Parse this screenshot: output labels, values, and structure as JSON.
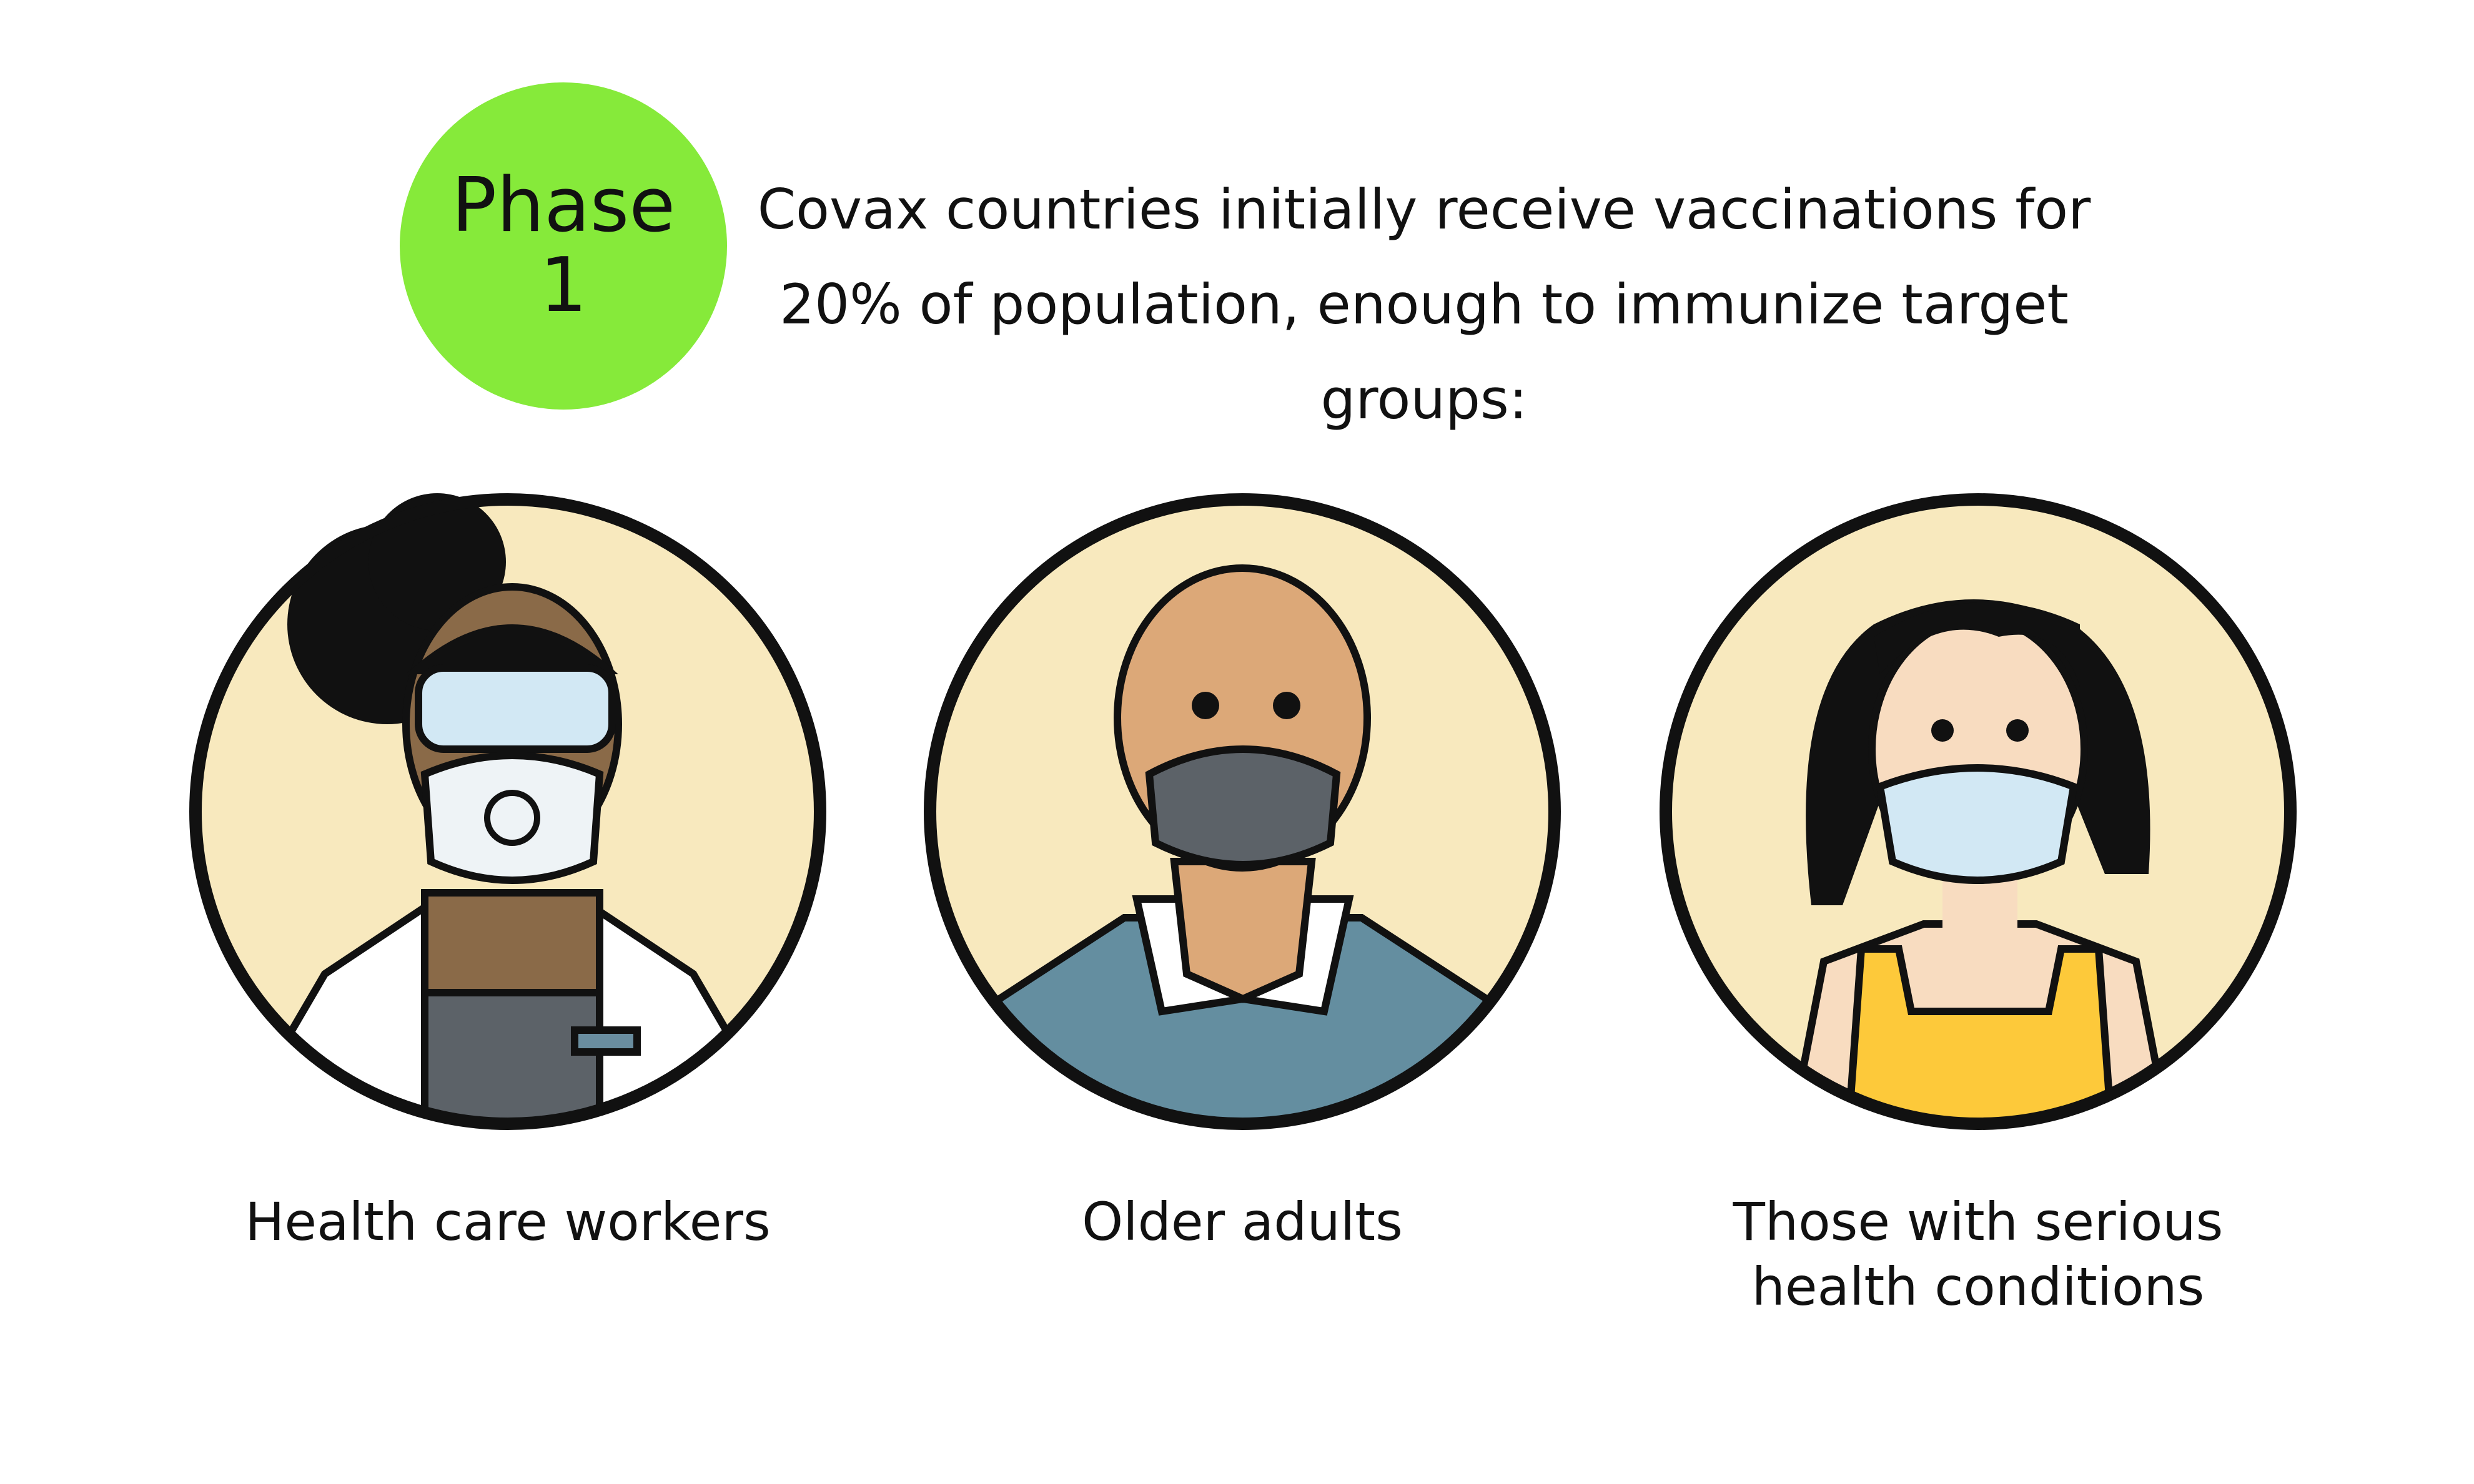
{
  "phase": {
    "word": "Phase",
    "number": "1",
    "color": "#86ea3a"
  },
  "intro": {
    "line1": "Covax countries initially receive vaccinations for",
    "line2": "20% of population, enough to immunize target groups:"
  },
  "groups": [
    {
      "label": "Health care workers",
      "icon": "health-care-worker-portrait"
    },
    {
      "label": "Older adults",
      "icon": "older-adult-portrait"
    },
    {
      "label_line1": "Those with serious",
      "label_line2": "health conditions",
      "icon": "woman-with-mask-portrait"
    }
  ],
  "colors": {
    "circle_fill": "#f8e9be",
    "outline": "#111111",
    "mask_blue": "#d2e8f4",
    "mask_dark": "#5c6268"
  }
}
